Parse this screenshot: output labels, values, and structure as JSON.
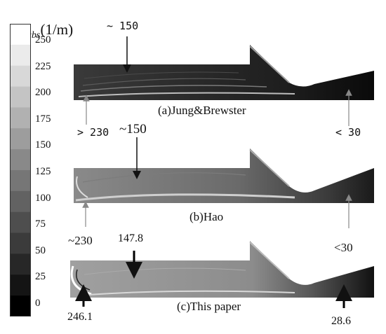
{
  "colorbar": {
    "title_main": "C",
    "title_sub": "abs",
    "title_unit": "(1/m)",
    "ticks": [
      "250",
      "225",
      "200",
      "175",
      "150",
      "125",
      "100",
      "75",
      "50",
      "25",
      "0"
    ],
    "levels": 14,
    "min": 0,
    "max": 250
  },
  "panels": [
    {
      "caption": "(a)Jung&Brewster",
      "annotations": [
        {
          "text": "~ 150",
          "target": "upper-duct"
        },
        {
          "text": "> 230",
          "target": "inlet-corner"
        },
        {
          "text": "< 30",
          "target": "exit-region"
        }
      ]
    },
    {
      "caption": "(b)Hao",
      "annotations": [
        {
          "text": "~150",
          "target": "upper-duct"
        },
        {
          "text": "~230",
          "target": "inlet-corner"
        },
        {
          "text": "<30",
          "target": "exit-region"
        }
      ]
    },
    {
      "caption": "(c)This paper",
      "annotations": [
        {
          "text": "147.8",
          "target": "upper-duct"
        },
        {
          "text": "246.1",
          "target": "inlet-corner"
        },
        {
          "text": "28.6",
          "target": "exit-region"
        }
      ]
    }
  ],
  "colors": {
    "colorbar_dark": "#000000",
    "colorbar_light": "#ffffff",
    "panel_a_fill": "#1c1c1c",
    "panel_b_fill": "#5a5a5a",
    "panel_c_fill": "#8a8a8a"
  }
}
